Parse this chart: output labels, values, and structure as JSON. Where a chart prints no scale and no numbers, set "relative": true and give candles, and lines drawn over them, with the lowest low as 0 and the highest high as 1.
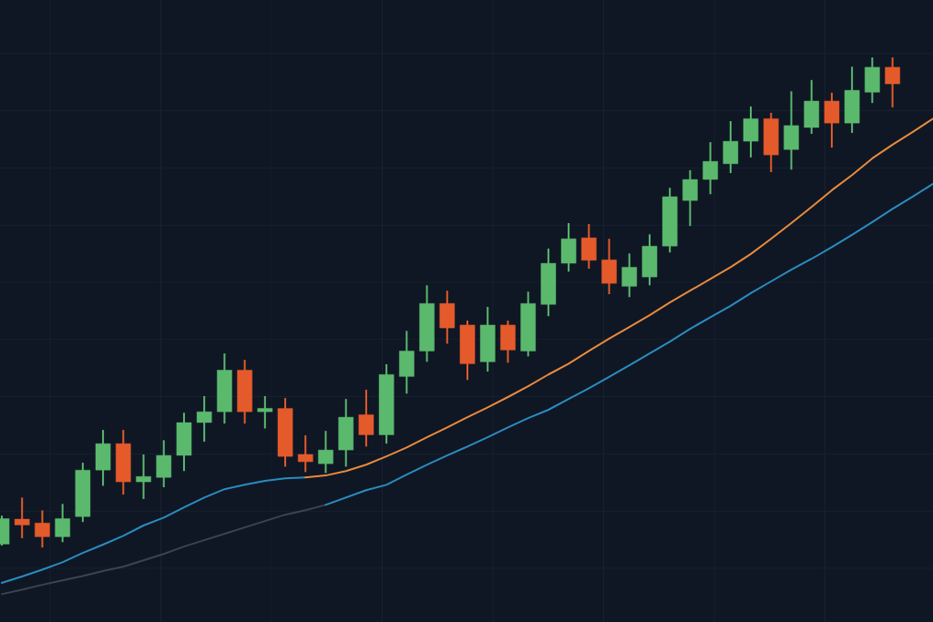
{
  "chart_data": {
    "type": "candlestick",
    "relative": true,
    "grid": true,
    "categories": [
      null,
      null,
      null,
      null,
      null,
      null,
      null,
      null,
      null,
      null,
      null,
      null,
      null,
      null,
      null,
      null,
      null,
      null,
      null,
      null,
      null,
      null,
      null,
      null,
      null,
      null,
      null,
      null,
      null,
      null,
      null,
      null,
      null,
      null,
      null,
      null,
      null,
      null,
      null,
      null,
      null,
      null,
      null,
      null,
      null,
      null,
      null
    ],
    "ohlc": [
      [
        0.007,
        0.065,
        0.004,
        0.059
      ],
      [
        0.058,
        0.102,
        0.019,
        0.046
      ],
      [
        0.05,
        0.076,
        0,
        0.022
      ],
      [
        0.022,
        0.089,
        0.011,
        0.059
      ],
      [
        0.063,
        0.173,
        0.052,
        0.158
      ],
      [
        0.158,
        0.24,
        0.126,
        0.212
      ],
      [
        0.212,
        0.24,
        0.108,
        0.134
      ],
      [
        0.134,
        0.19,
        0.099,
        0.145
      ],
      [
        0.143,
        0.219,
        0.123,
        0.188
      ],
      [
        0.188,
        0.275,
        0.156,
        0.255
      ],
      [
        0.255,
        0.309,
        0.216,
        0.277
      ],
      [
        0.277,
        0.396,
        0.253,
        0.362
      ],
      [
        0.362,
        0.383,
        0.253,
        0.277
      ],
      [
        0.277,
        0.309,
        0.243,
        0.284
      ],
      [
        0.284,
        0.305,
        0.165,
        0.186
      ],
      [
        0.19,
        0.229,
        0.154,
        0.175
      ],
      [
        0.171,
        0.238,
        0.152,
        0.199
      ],
      [
        0.199,
        0.303,
        0.165,
        0.266
      ],
      [
        0.271,
        0.322,
        0.206,
        0.23
      ],
      [
        0.23,
        0.374,
        0.212,
        0.353
      ],
      [
        0.349,
        0.442,
        0.314,
        0.401
      ],
      [
        0.401,
        0.535,
        0.379,
        0.498
      ],
      [
        0.498,
        0.524,
        0.416,
        0.448
      ],
      [
        0.454,
        0.463,
        0.342,
        0.375
      ],
      [
        0.379,
        0.491,
        0.359,
        0.454
      ],
      [
        0.454,
        0.463,
        0.377,
        0.403
      ],
      [
        0.401,
        0.522,
        0.39,
        0.498
      ],
      [
        0.496,
        0.61,
        0.472,
        0.58
      ],
      [
        0.58,
        0.662,
        0.563,
        0.63
      ],
      [
        0.632,
        0.66,
        0.569,
        0.586
      ],
      [
        0.587,
        0.63,
        0.517,
        0.539
      ],
      [
        0.533,
        0.6,
        0.511,
        0.572
      ],
      [
        0.552,
        0.639,
        0.535,
        0.615
      ],
      [
        0.615,
        0.734,
        0.602,
        0.716
      ],
      [
        0.708,
        0.77,
        0.656,
        0.751
      ],
      [
        0.751,
        0.827,
        0.721,
        0.788
      ],
      [
        0.783,
        0.87,
        0.764,
        0.829
      ],
      [
        0.829,
        0.9,
        0.796,
        0.875
      ],
      [
        0.875,
        0.887,
        0.766,
        0.801
      ],
      [
        0.812,
        0.931,
        0.771,
        0.861
      ],
      [
        0.857,
        0.954,
        0.844,
        0.911
      ],
      [
        0.911,
        0.928,
        0.816,
        0.866
      ],
      [
        0.866,
        0.981,
        0.846,
        0.933
      ],
      [
        0.929,
        1,
        0.907,
        0.98
      ],
      [
        0.98,
        1,
        0.898,
        0.946
      ],
      null,
      null
    ],
    "colors": [
      "#5bb96e",
      "#e55a2b",
      "#e55a2b",
      "#5bb96e",
      "#5bb96e",
      "#5bb96e",
      "#e55a2b",
      "#5bb96e",
      "#5bb96e",
      "#5bb96e",
      "#5bb96e",
      "#5bb96e",
      "#e55a2b",
      "#5bb96e",
      "#e55a2b",
      "#e55a2b",
      "#5bb96e",
      "#5bb96e",
      "#e55a2b",
      "#5bb96e",
      "#5bb96e",
      "#5bb96e",
      "#e55a2b",
      "#e55a2b",
      "#5bb96e",
      "#e55a2b",
      "#5bb96e",
      "#5bb96e",
      "#5bb96e",
      "#e55a2b",
      "#e55a2b",
      "#5bb96e",
      "#5bb96e",
      "#5bb96e",
      "#5bb96e",
      "#5bb96e",
      "#5bb96e",
      "#5bb96e",
      "#e55a2b",
      "#5bb96e",
      "#5bb96e",
      "#e55a2b",
      "#5bb96e",
      "#5bb96e",
      "#e55a2b",
      null,
      null
    ],
    "series": [
      {
        "type": "line",
        "color": "#2b8cc0",
        "values": [
          -0.072,
          -0.059,
          -0.045,
          -0.03,
          -0.011,
          0.006,
          0.024,
          0.045,
          0.061,
          0.082,
          0.102,
          0.119,
          0.128,
          0.136,
          0.141,
          0.143,
          null,
          null,
          null,
          null,
          null,
          null,
          null,
          null,
          null,
          null,
          null,
          null,
          null,
          null,
          null,
          null,
          null,
          null,
          null,
          null,
          null,
          null,
          null,
          null,
          null,
          null,
          null,
          null,
          null,
          null,
          null
        ]
      },
      {
        "type": "line",
        "color": "#e98a3c",
        "values": [
          null,
          null,
          null,
          null,
          null,
          null,
          null,
          null,
          null,
          null,
          null,
          null,
          null,
          null,
          null,
          0.143,
          0.147,
          0.156,
          0.169,
          0.186,
          0.204,
          0.225,
          0.245,
          0.266,
          0.286,
          0.307,
          0.329,
          0.353,
          0.375,
          0.401,
          0.426,
          0.45,
          0.474,
          0.5,
          0.524,
          0.548,
          0.572,
          0.599,
          0.63,
          0.662,
          0.695,
          0.729,
          0.76,
          0.794,
          0.822,
          0.848,
          0.875
        ]
      },
      {
        "type": "line",
        "color": "#3a4452",
        "values": [
          -0.095,
          -0.086,
          -0.076,
          -0.067,
          -0.058,
          -0.048,
          -0.039,
          -0.026,
          -0.013,
          0.002,
          0.015,
          0.028,
          0.041,
          0.054,
          0.067,
          0.076,
          0.087,
          null,
          null,
          null,
          null,
          null,
          null,
          null,
          null,
          null,
          null,
          null,
          null,
          null,
          null,
          null,
          null,
          null,
          null,
          null,
          null,
          null,
          null,
          null,
          null,
          null,
          null,
          null,
          null,
          null,
          null
        ]
      },
      {
        "type": "line",
        "color": "#2b8cc0",
        "values": [
          null,
          null,
          null,
          null,
          null,
          null,
          null,
          null,
          null,
          null,
          null,
          null,
          null,
          null,
          null,
          null,
          0.087,
          0.102,
          0.117,
          0.128,
          0.149,
          0.169,
          0.188,
          0.206,
          0.225,
          0.245,
          0.264,
          0.281,
          0.303,
          0.325,
          0.348,
          0.372,
          0.396,
          0.42,
          0.446,
          0.47,
          0.493,
          0.519,
          0.543,
          0.567,
          0.589,
          0.613,
          0.638,
          0.664,
          0.691,
          0.716,
          0.742
        ]
      }
    ]
  }
}
